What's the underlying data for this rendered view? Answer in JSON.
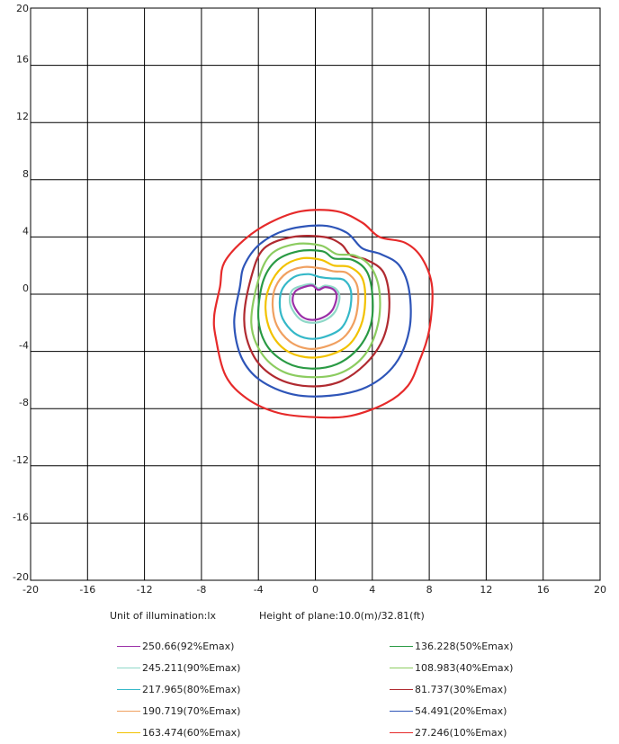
{
  "chart_data": {
    "type": "contour",
    "xlim": [
      -20,
      20
    ],
    "ylim": [
      -20,
      20
    ],
    "xticks": [
      -20,
      -16,
      -12,
      -8,
      -4,
      0,
      4,
      8,
      12,
      16,
      20
    ],
    "yticks": [
      -20,
      -16,
      -12,
      -8,
      -4,
      0,
      4,
      8,
      12,
      16,
      20
    ],
    "grid": true,
    "info": {
      "unit": "Unit of illumination:lx",
      "height": "Height of plane:10.0(m)/32.81(ft)"
    },
    "series": [
      {
        "name": "250.66(92%Emax)",
        "color": "#9b30a8",
        "points": [
          [
            -1.4,
            0.2
          ],
          [
            -0.8,
            0.5
          ],
          [
            -0.2,
            0.6
          ],
          [
            0.2,
            0.3
          ],
          [
            0.7,
            0.5
          ],
          [
            1.3,
            0.3
          ],
          [
            1.5,
            -0.2
          ],
          [
            1.2,
            -1.1
          ],
          [
            0.6,
            -1.6
          ],
          [
            -0.2,
            -1.8
          ],
          [
            -0.9,
            -1.6
          ],
          [
            -1.4,
            -1.0
          ],
          [
            -1.6,
            -0.4
          ]
        ]
      },
      {
        "name": "245.211(90%Emax)",
        "color": "#8fd8c8",
        "points": [
          [
            -1.6,
            0.3
          ],
          [
            -0.9,
            0.6
          ],
          [
            -0.2,
            0.7
          ],
          [
            0.2,
            0.4
          ],
          [
            0.7,
            0.6
          ],
          [
            1.4,
            0.4
          ],
          [
            1.7,
            -0.2
          ],
          [
            1.4,
            -1.2
          ],
          [
            0.7,
            -1.8
          ],
          [
            -0.2,
            -2.0
          ],
          [
            -1.0,
            -1.8
          ],
          [
            -1.6,
            -1.1
          ],
          [
            -1.8,
            -0.4
          ]
        ]
      },
      {
        "name": "217.965(80%Emax)",
        "color": "#35b8c8",
        "points": [
          [
            -2.3,
            0.4
          ],
          [
            -1.5,
            1.2
          ],
          [
            -0.5,
            1.4
          ],
          [
            0.3,
            1.2
          ],
          [
            1.1,
            1.1
          ],
          [
            2.0,
            1.0
          ],
          [
            2.5,
            0.2
          ],
          [
            2.4,
            -1.2
          ],
          [
            1.8,
            -2.4
          ],
          [
            0.6,
            -3.0
          ],
          [
            -0.5,
            -3.1
          ],
          [
            -1.5,
            -2.7
          ],
          [
            -2.3,
            -1.7
          ],
          [
            -2.5,
            -0.6
          ]
        ]
      },
      {
        "name": "190.719(70%Emax)",
        "color": "#f0a060",
        "points": [
          [
            -2.8,
            0.5
          ],
          [
            -2.0,
            1.5
          ],
          [
            -0.8,
            1.9
          ],
          [
            0.4,
            1.8
          ],
          [
            1.3,
            1.6
          ],
          [
            2.2,
            1.5
          ],
          [
            2.9,
            0.7
          ],
          [
            3.0,
            -0.6
          ],
          [
            2.7,
            -2.0
          ],
          [
            1.9,
            -3.1
          ],
          [
            0.6,
            -3.7
          ],
          [
            -0.6,
            -3.8
          ],
          [
            -1.8,
            -3.3
          ],
          [
            -2.7,
            -2.2
          ],
          [
            -3.0,
            -0.8
          ]
        ]
      },
      {
        "name": "163.474(60%Emax)",
        "color": "#f2c200",
        "points": [
          [
            -3.2,
            0.6
          ],
          [
            -2.3,
            1.9
          ],
          [
            -1.0,
            2.5
          ],
          [
            0.4,
            2.4
          ],
          [
            1.3,
            2.0
          ],
          [
            2.4,
            1.9
          ],
          [
            3.3,
            1.1
          ],
          [
            3.5,
            -0.5
          ],
          [
            3.2,
            -2.2
          ],
          [
            2.3,
            -3.6
          ],
          [
            0.8,
            -4.3
          ],
          [
            -0.7,
            -4.4
          ],
          [
            -2.1,
            -3.9
          ],
          [
            -3.1,
            -2.7
          ],
          [
            -3.5,
            -1.0
          ]
        ]
      },
      {
        "name": "136.228(50%Emax)",
        "color": "#2a9a44",
        "points": [
          [
            -3.7,
            0.8
          ],
          [
            -2.8,
            2.3
          ],
          [
            -1.2,
            3.0
          ],
          [
            0.5,
            3.0
          ],
          [
            1.3,
            2.5
          ],
          [
            2.6,
            2.4
          ],
          [
            3.6,
            1.6
          ],
          [
            4.0,
            0.0
          ],
          [
            3.9,
            -2.1
          ],
          [
            3.0,
            -3.8
          ],
          [
            1.5,
            -4.9
          ],
          [
            -0.3,
            -5.2
          ],
          [
            -2.0,
            -4.8
          ],
          [
            -3.4,
            -3.6
          ],
          [
            -4.0,
            -1.7
          ]
        ]
      },
      {
        "name": "108.983(40%Emax)",
        "color": "#8ccc60",
        "points": [
          [
            -4.0,
            1.0
          ],
          [
            -3.1,
            2.8
          ],
          [
            -1.4,
            3.5
          ],
          [
            0.4,
            3.4
          ],
          [
            1.5,
            2.8
          ],
          [
            2.8,
            2.7
          ],
          [
            3.9,
            1.9
          ],
          [
            4.5,
            0.2
          ],
          [
            4.4,
            -2.1
          ],
          [
            3.5,
            -4.2
          ],
          [
            1.8,
            -5.5
          ],
          [
            -0.3,
            -5.8
          ],
          [
            -2.3,
            -5.4
          ],
          [
            -3.8,
            -4.1
          ],
          [
            -4.5,
            -2.0
          ]
        ]
      },
      {
        "name": "81.737(30%Emax)",
        "color": "#b02a30",
        "points": [
          [
            -4.5,
            1.2
          ],
          [
            -3.6,
            3.2
          ],
          [
            -1.6,
            4.0
          ],
          [
            0.6,
            4.0
          ],
          [
            1.8,
            3.5
          ],
          [
            2.5,
            2.7
          ],
          [
            3.6,
            2.4
          ],
          [
            4.8,
            1.5
          ],
          [
            5.2,
            -0.6
          ],
          [
            4.8,
            -3.0
          ],
          [
            3.5,
            -4.9
          ],
          [
            1.5,
            -6.2
          ],
          [
            -0.9,
            -6.4
          ],
          [
            -3.0,
            -5.7
          ],
          [
            -4.4,
            -4.2
          ],
          [
            -5.0,
            -1.8
          ]
        ]
      },
      {
        "name": "54.491(20%Emax)",
        "color": "#2e55b8",
        "points": [
          [
            -5.3,
            0.5
          ],
          [
            -5.0,
            2.0
          ],
          [
            -3.9,
            3.5
          ],
          [
            -2.0,
            4.5
          ],
          [
            0.5,
            4.8
          ],
          [
            2.2,
            4.3
          ],
          [
            3.3,
            3.2
          ],
          [
            4.6,
            2.8
          ],
          [
            5.9,
            2.0
          ],
          [
            6.6,
            0.2
          ],
          [
            6.6,
            -2.5
          ],
          [
            5.6,
            -4.9
          ],
          [
            3.6,
            -6.5
          ],
          [
            1.0,
            -7.1
          ],
          [
            -1.6,
            -7.0
          ],
          [
            -3.9,
            -6.0
          ],
          [
            -5.2,
            -4.4
          ],
          [
            -5.7,
            -2.0
          ]
        ]
      },
      {
        "name": "27.246(10%Emax)",
        "color": "#e62a2a",
        "points": [
          [
            -6.7,
            0.5
          ],
          [
            -6.4,
            2.2
          ],
          [
            -5.0,
            3.8
          ],
          [
            -3.2,
            5.0
          ],
          [
            -1.0,
            5.8
          ],
          [
            1.5,
            5.8
          ],
          [
            3.3,
            5.0
          ],
          [
            4.5,
            4.0
          ],
          [
            6.3,
            3.6
          ],
          [
            7.5,
            2.5
          ],
          [
            8.2,
            0.5
          ],
          [
            8.0,
            -2.5
          ],
          [
            7.3,
            -4.7
          ],
          [
            6.5,
            -6.4
          ],
          [
            5.0,
            -7.6
          ],
          [
            2.5,
            -8.5
          ],
          [
            0.0,
            -8.6
          ],
          [
            -2.6,
            -8.3
          ],
          [
            -4.8,
            -7.3
          ],
          [
            -6.3,
            -5.7
          ],
          [
            -7.0,
            -3.0
          ],
          [
            -7.1,
            -1.5
          ]
        ]
      }
    ]
  }
}
